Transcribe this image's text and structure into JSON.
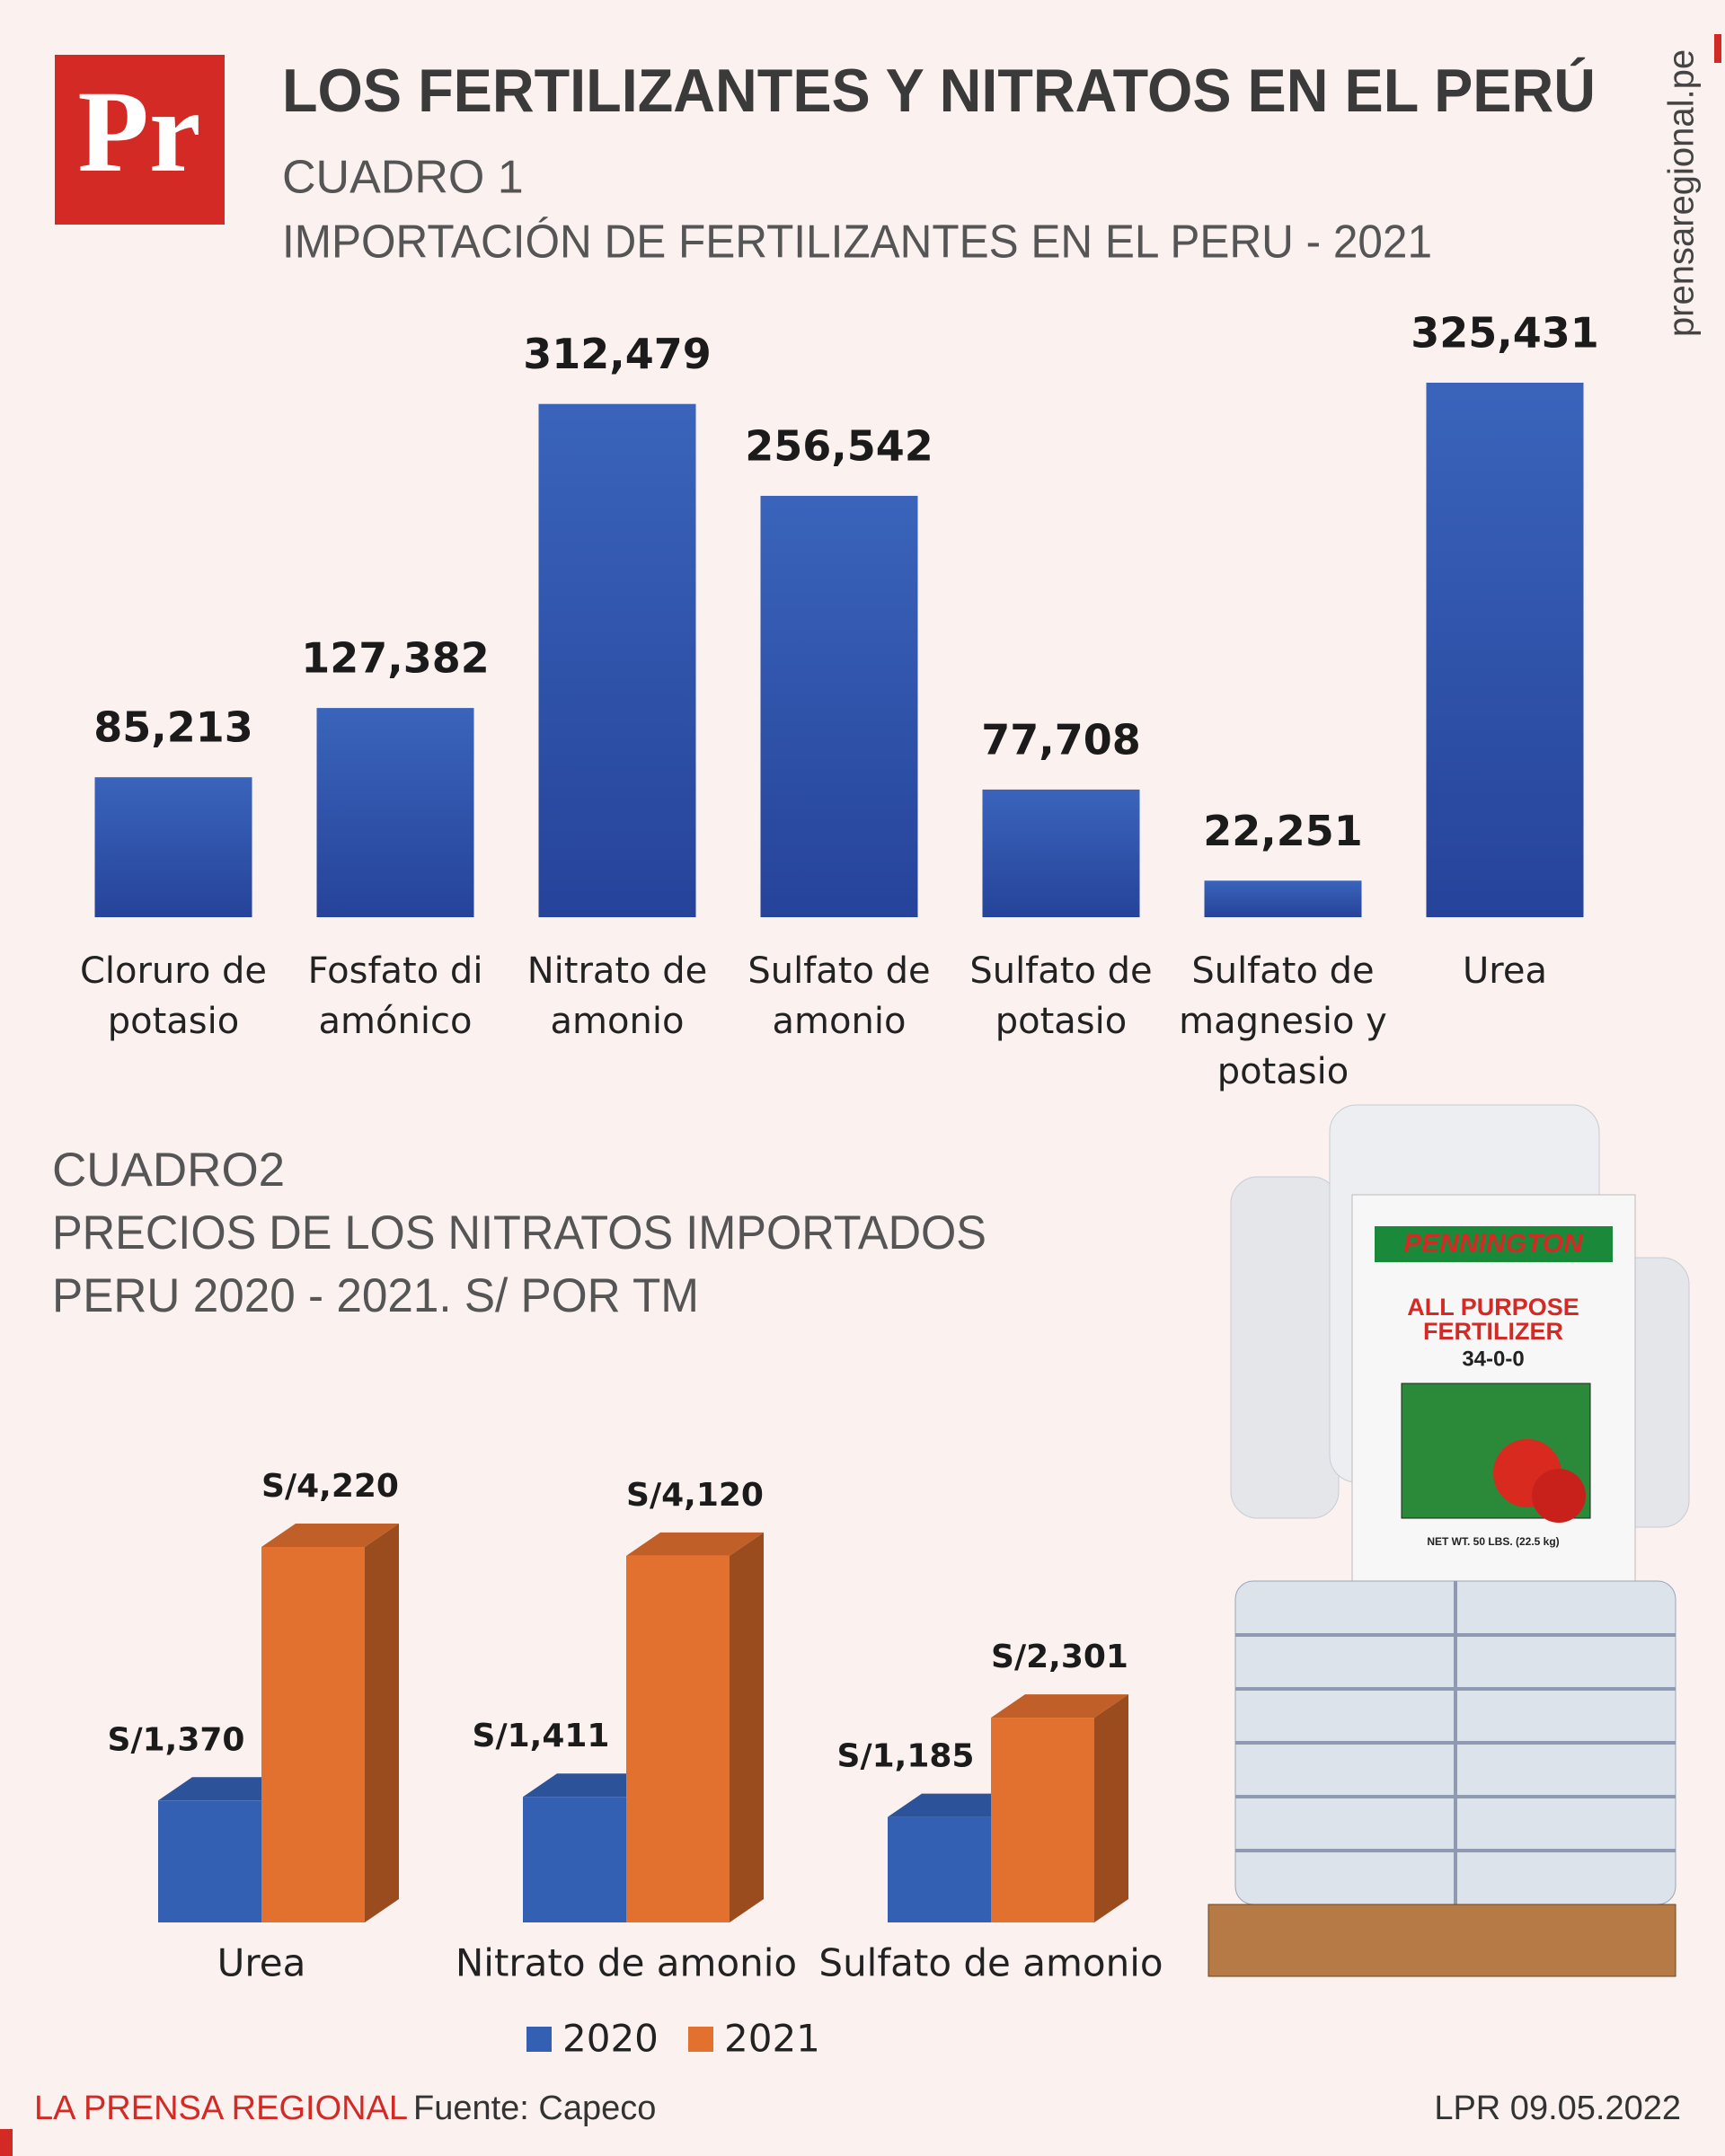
{
  "header": {
    "logo": "Pr",
    "title": "LOS FERTILIZANTES Y NITRATOS EN EL PERÚ",
    "site": "prensaregional.pe"
  },
  "chart_data": [
    {
      "type": "bar",
      "title": "CUADRO 1",
      "subtitle": "IMPORTACIÓN DE FERTILIZANTES EN EL PERU - 2021",
      "categories": [
        "Cloruro de potasio",
        "Fosfato di amónico",
        "Nitrato de amonio",
        "Sulfato de amonio",
        "Sulfato de potasio",
        "Sulfato de magnesio y potasio",
        "Urea"
      ],
      "values": [
        85213,
        127382,
        312479,
        256542,
        77708,
        22251,
        325431
      ],
      "value_labels": [
        "85,213",
        "127,382",
        "312,479",
        "256,542",
        "77,708",
        "22,251",
        "325,431"
      ],
      "color": "#2f56ad"
    },
    {
      "type": "bar3d",
      "title": "CUADRO2",
      "subtitle": [
        "PRECIOS DE LOS NITRATOS IMPORTADOS",
        "PERU 2020 - 2021. S/ POR TM"
      ],
      "categories": [
        "Urea",
        "Nitrato de amonio",
        "Sulfato de amonio"
      ],
      "series": [
        {
          "name": "2020",
          "color": "#3460b4",
          "values": [
            1370,
            1411,
            1185
          ],
          "value_labels": [
            "S/1,370",
            "S/1,411",
            "S/1,185"
          ]
        },
        {
          "name": "2021",
          "color": "#e2702e",
          "values": [
            4220,
            4120,
            2301
          ],
          "value_labels": [
            "S/4,220",
            "S/4,120",
            "S/2,301"
          ]
        }
      ],
      "legend": "bottom"
    }
  ],
  "illustration": {
    "brand": "PENNINGTON",
    "product": [
      "ALL PURPOSE",
      "FERTILIZER"
    ],
    "formula": "34-0-0",
    "weight": "NET WT. 50 LBS. (22.5 kg)"
  },
  "footer": {
    "publisher": "LA PRENSA REGIONAL",
    "source": "Fuente: Capeco",
    "date": "LPR 09.05.2022"
  }
}
